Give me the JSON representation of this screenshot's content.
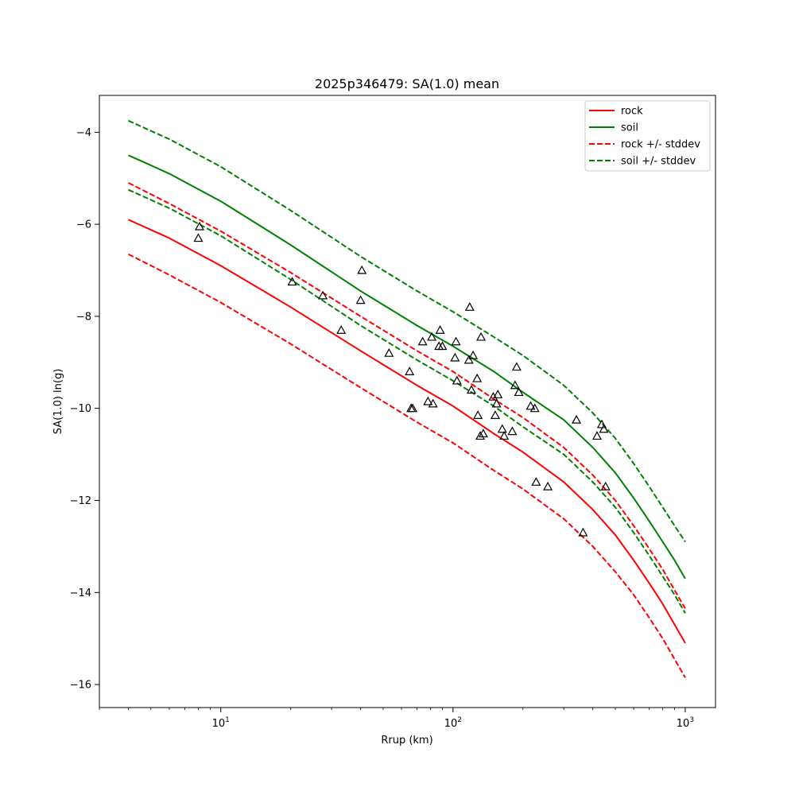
{
  "chart_data": {
    "type": "line",
    "title": "2025p346479: SA(1.0) mean",
    "xlabel": "Rrup (km)",
    "ylabel": "SA(1.0) ln(g)",
    "x_scale": "log",
    "xlim": [
      3.0,
      1350
    ],
    "ylim": [
      -16.5,
      -3.2
    ],
    "x_ticks": [
      {
        "value": 10,
        "base": "10",
        "exp": "1"
      },
      {
        "value": 100,
        "base": "10",
        "exp": "2"
      },
      {
        "value": 1000,
        "base": "10",
        "exp": "3"
      }
    ],
    "y_ticks": [
      -4,
      -6,
      -8,
      -10,
      -12,
      -14,
      -16
    ],
    "y_tick_labels": [
      "−4",
      "−6",
      "−8",
      "−10",
      "−12",
      "−14",
      "−16"
    ],
    "grid": false,
    "legend_position": "top-right",
    "legend": [
      "rock",
      "soil",
      "rock +/- stddev",
      "soil +/- stddev"
    ],
    "colors": {
      "rock": "#ff0000",
      "soil": "#008000",
      "points": "#000000"
    },
    "series": [
      {
        "name": "rock",
        "style": "solid",
        "color": "#ff0000",
        "x": [
          4,
          6,
          10,
          20,
          40,
          70,
          100,
          150,
          200,
          300,
          400,
          500,
          600,
          700,
          800,
          900,
          1000
        ],
        "y": [
          -5.9,
          -6.3,
          -6.9,
          -7.8,
          -8.75,
          -9.5,
          -9.95,
          -10.55,
          -10.95,
          -11.6,
          -12.2,
          -12.75,
          -13.3,
          -13.8,
          -14.25,
          -14.7,
          -15.1
        ]
      },
      {
        "name": "soil",
        "style": "solid",
        "color": "#008000",
        "x": [
          4,
          6,
          10,
          20,
          40,
          70,
          100,
          150,
          200,
          300,
          400,
          500,
          600,
          700,
          800,
          900,
          1000
        ],
        "y": [
          -4.5,
          -4.9,
          -5.5,
          -6.45,
          -7.45,
          -8.2,
          -8.65,
          -9.2,
          -9.65,
          -10.25,
          -10.85,
          -11.4,
          -11.95,
          -12.45,
          -12.9,
          -13.3,
          -13.7
        ]
      },
      {
        "name": "",
        "style": "dashed",
        "color": "#ff0000",
        "x": [
          4,
          6,
          10,
          20,
          40,
          70,
          100,
          150,
          200,
          300,
          400,
          500,
          600,
          700,
          800,
          900,
          1000
        ],
        "y": [
          -5.1,
          -5.55,
          -6.15,
          -7.05,
          -8.0,
          -8.75,
          -9.2,
          -9.8,
          -10.2,
          -10.85,
          -11.45,
          -12.0,
          -12.55,
          -13.05,
          -13.5,
          -13.95,
          -14.35
        ]
      },
      {
        "name": "",
        "style": "dashed",
        "color": "#ff0000",
        "x": [
          4,
          6,
          10,
          20,
          40,
          70,
          100,
          150,
          200,
          300,
          400,
          500,
          600,
          700,
          800,
          900,
          1000
        ],
        "y": [
          -6.65,
          -7.1,
          -7.7,
          -8.6,
          -9.55,
          -10.3,
          -10.75,
          -11.35,
          -11.75,
          -12.4,
          -13.0,
          -13.55,
          -14.05,
          -14.55,
          -15.0,
          -15.45,
          -15.85
        ]
      },
      {
        "name": "",
        "style": "dashed",
        "color": "#008000",
        "x": [
          4,
          6,
          10,
          20,
          40,
          70,
          100,
          150,
          200,
          300,
          400,
          500,
          600,
          700,
          800,
          900,
          1000
        ],
        "y": [
          -3.75,
          -4.15,
          -4.75,
          -5.7,
          -6.7,
          -7.45,
          -7.9,
          -8.45,
          -8.85,
          -9.5,
          -10.1,
          -10.65,
          -11.2,
          -11.7,
          -12.15,
          -12.55,
          -12.9
        ]
      },
      {
        "name": "",
        "style": "dashed",
        "color": "#008000",
        "x": [
          4,
          6,
          10,
          20,
          40,
          70,
          100,
          150,
          200,
          300,
          400,
          500,
          600,
          700,
          800,
          900,
          1000
        ],
        "y": [
          -5.25,
          -5.65,
          -6.25,
          -7.2,
          -8.2,
          -8.95,
          -9.4,
          -9.95,
          -10.4,
          -11.0,
          -11.6,
          -12.15,
          -12.7,
          -13.2,
          -13.65,
          -14.05,
          -14.45
        ]
      }
    ],
    "points": {
      "marker": "triangle",
      "x": [
        8.1,
        8.0,
        20.3,
        27.5,
        33,
        40.5,
        40,
        53,
        65,
        66,
        67,
        78,
        81,
        82,
        74,
        88,
        87,
        90,
        102,
        104,
        103,
        118,
        117,
        120,
        122,
        127,
        128,
        132,
        131,
        135,
        149,
        152,
        154,
        156,
        163,
        166,
        180,
        185,
        188,
        192,
        216,
        225,
        228,
        256,
        340,
        363,
        417,
        437,
        446,
        454
      ],
      "y": [
        -6.05,
        -6.3,
        -7.25,
        -7.55,
        -8.3,
        -7.0,
        -7.65,
        -8.8,
        -9.2,
        -10.0,
        -10.0,
        -9.85,
        -8.45,
        -9.9,
        -8.55,
        -8.3,
        -8.65,
        -8.65,
        -8.9,
        -9.4,
        -8.55,
        -7.8,
        -8.95,
        -9.6,
        -8.85,
        -9.35,
        -10.15,
        -8.45,
        -10.6,
        -10.55,
        -9.75,
        -10.15,
        -9.9,
        -9.7,
        -10.45,
        -10.6,
        -10.5,
        -9.5,
        -9.1,
        -9.65,
        -9.95,
        -10.0,
        -11.6,
        -11.7,
        -10.25,
        -12.7,
        -10.6,
        -10.35,
        -10.45,
        -11.7
      ]
    }
  }
}
